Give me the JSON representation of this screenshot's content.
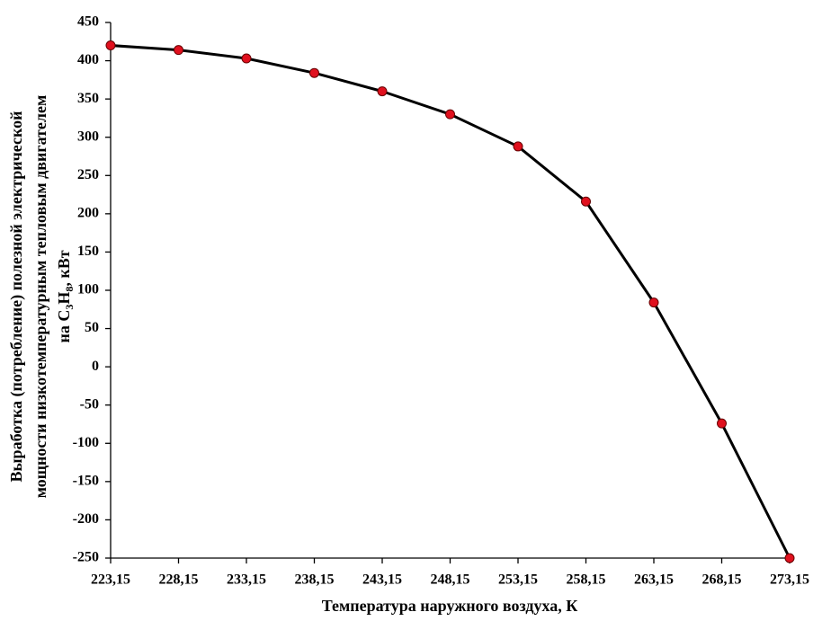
{
  "chart_data": {
    "type": "line",
    "xlabel": "Температура наружного воздуха, К",
    "ylabel_lines": [
      "Выработка (потребление) полезной электрической",
      "мощности низкотемпературным тепловым двигателем"
    ],
    "ylabel_formula": [
      "на C",
      "3",
      "H",
      "8",
      ", кВт"
    ],
    "x": [
      223.15,
      228.15,
      233.15,
      238.15,
      243.15,
      248.15,
      253.15,
      258.15,
      263.15,
      268.15,
      273.15
    ],
    "values": [
      420,
      414,
      403,
      384,
      360,
      330,
      288,
      216,
      84,
      -74,
      -250
    ],
    "line_color": "#000000",
    "marker_color": "#e0101e",
    "xlim": [
      223.15,
      273.15
    ],
    "xticks": [
      {
        "value": 223.15,
        "label": "223,15"
      },
      {
        "value": 228.15,
        "label": "228,15"
      },
      {
        "value": 233.15,
        "label": "233,15"
      },
      {
        "value": 238.15,
        "label": "238,15"
      },
      {
        "value": 243.15,
        "label": "243,15"
      },
      {
        "value": 248.15,
        "label": "248,15"
      },
      {
        "value": 253.15,
        "label": "253,15"
      },
      {
        "value": 258.15,
        "label": "258,15"
      },
      {
        "value": 263.15,
        "label": "263,15"
      },
      {
        "value": 268.15,
        "label": "268,15"
      },
      {
        "value": 273.15,
        "label": "273,15"
      }
    ],
    "ylim": [
      -250,
      450
    ],
    "yticks": [
      -250,
      -200,
      -150,
      -100,
      -50,
      0,
      50,
      100,
      150,
      200,
      250,
      300,
      350,
      400,
      450
    ],
    "grid": false
  }
}
